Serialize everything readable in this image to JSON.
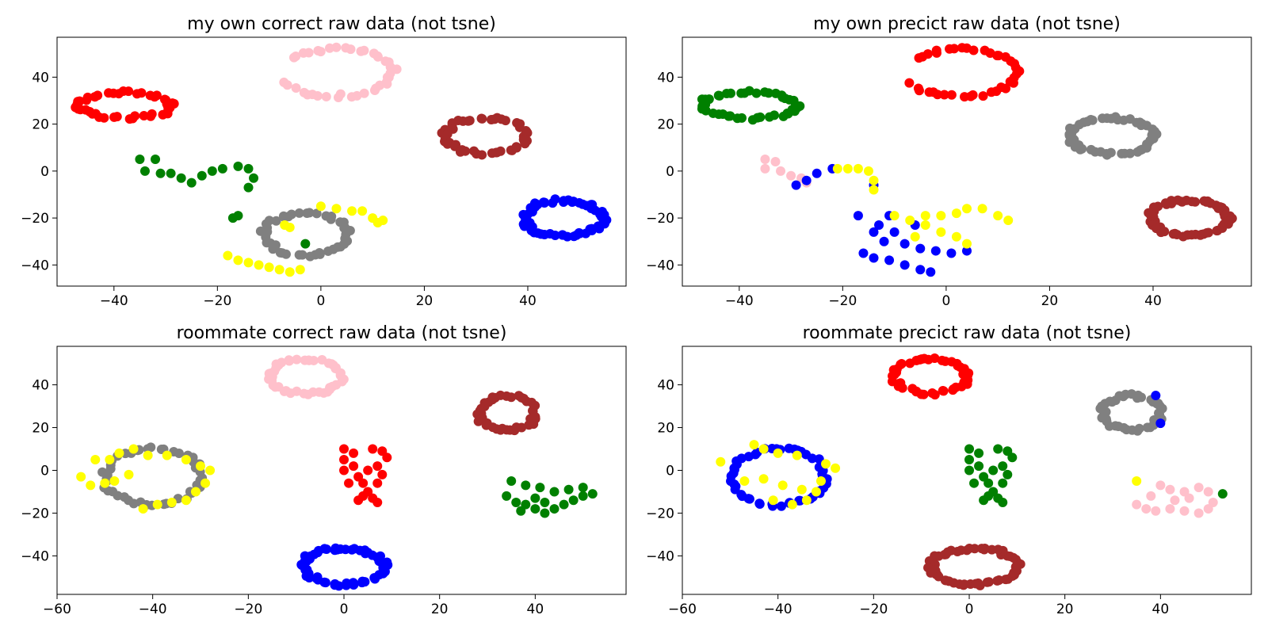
{
  "figure": {
    "background": "#ffffff"
  },
  "chart_data": [
    {
      "type": "scatter",
      "title": "my own correct raw data (not tsne)",
      "xlim": [
        -51,
        59
      ],
      "ylim": [
        -49,
        57
      ],
      "xticks": [
        -40,
        -20,
        0,
        20,
        40
      ],
      "yticks": [
        -40,
        -20,
        0,
        20,
        40
      ],
      "clusters": [
        {
          "color": "#ff0000",
          "shape": "ring",
          "cx": -38,
          "cy": 28,
          "rx": 9,
          "ry": 5.5,
          "n": 45
        },
        {
          "color": "#ffc0cb",
          "shape": "ring",
          "cx": 3,
          "cy": 42,
          "rx": 11,
          "ry": 10,
          "n": 40,
          "arc": [
            -150,
            150
          ]
        },
        {
          "color": "#a52a2a",
          "shape": "ring",
          "cx": 32,
          "cy": 15,
          "rx": 8,
          "ry": 7.5,
          "n": 50
        },
        {
          "color": "#008000",
          "shape": "points",
          "points": [
            [
              -35,
              5
            ],
            [
              -32,
              5
            ],
            [
              -34,
              0
            ],
            [
              -31,
              -1
            ],
            [
              -29,
              -1
            ],
            [
              -27,
              -3
            ],
            [
              -25,
              -5
            ],
            [
              -23,
              -2
            ],
            [
              -21,
              0
            ],
            [
              -19,
              1
            ],
            [
              -16,
              2
            ],
            [
              -14,
              1
            ],
            [
              -13,
              -3
            ],
            [
              -14,
              -7
            ],
            [
              -17,
              -20
            ],
            [
              -16,
              -19
            ],
            [
              -3,
              -31
            ]
          ]
        },
        {
          "color": "#0000ff",
          "shape": "ring",
          "cx": 47,
          "cy": -20,
          "rx": 7.5,
          "ry": 7.5,
          "n": 60
        },
        {
          "color": "#808080",
          "shape": "ring",
          "cx": -3,
          "cy": -27,
          "rx": 8,
          "ry": 9,
          "n": 45
        },
        {
          "color": "#ffff00",
          "shape": "points",
          "points": [
            [
              0,
              -15
            ],
            [
              3,
              -16
            ],
            [
              6,
              -17
            ],
            [
              8,
              -17
            ],
            [
              10,
              -20
            ],
            [
              11,
              -22
            ],
            [
              12,
              -21
            ],
            [
              -6,
              -24
            ],
            [
              -7,
              -23
            ],
            [
              -18,
              -36
            ],
            [
              -16,
              -38
            ],
            [
              -14,
              -39
            ],
            [
              -12,
              -40
            ],
            [
              -10,
              -41
            ],
            [
              -8,
              -42
            ],
            [
              -6,
              -43
            ],
            [
              -4,
              -42
            ]
          ]
        }
      ]
    },
    {
      "type": "scatter",
      "title": "my own precict raw data (not tsne)",
      "xlim": [
        -51,
        59
      ],
      "ylim": [
        -49,
        57
      ],
      "xticks": [
        -40,
        -20,
        0,
        20,
        40
      ],
      "yticks": [
        -40,
        -20,
        0,
        20,
        40
      ],
      "clusters": [
        {
          "color": "#ff0000",
          "shape": "ring",
          "cx": 3,
          "cy": 42,
          "rx": 11,
          "ry": 10,
          "n": 40,
          "arc": [
            -150,
            150
          ]
        },
        {
          "color": "#008000",
          "shape": "ring",
          "cx": -38,
          "cy": 28,
          "rx": 9,
          "ry": 5.5,
          "n": 45
        },
        {
          "color": "#808080",
          "shape": "ring",
          "cx": 32,
          "cy": 15,
          "rx": 8,
          "ry": 7.5,
          "n": 50
        },
        {
          "color": "#ffc0cb",
          "shape": "points",
          "points": [
            [
              -35,
              5
            ],
            [
              -33,
              4
            ],
            [
              -35,
              1
            ],
            [
              -32,
              0
            ],
            [
              -30,
              -2
            ],
            [
              -28,
              -3
            ],
            [
              -27,
              -5
            ]
          ]
        },
        {
          "color": "#0000ff",
          "shape": "points",
          "points": [
            [
              -29,
              -6
            ],
            [
              -27,
              -4
            ],
            [
              -25,
              -1
            ],
            [
              -22,
              1
            ],
            [
              -14,
              -6
            ],
            [
              -17,
              -19
            ],
            [
              -11,
              -19
            ],
            [
              -13,
              -23
            ],
            [
              -14,
              -26
            ],
            [
              -12,
              -30
            ],
            [
              -8,
              -31
            ],
            [
              -5,
              -33
            ],
            [
              -2,
              -34
            ],
            [
              1,
              -35
            ],
            [
              4,
              -34
            ],
            [
              -16,
              -35
            ],
            [
              -14,
              -37
            ],
            [
              -11,
              -38
            ],
            [
              -8,
              -40
            ],
            [
              -5,
              -42
            ],
            [
              -3,
              -43
            ],
            [
              -10,
              -26
            ],
            [
              -6,
              -23
            ]
          ]
        },
        {
          "color": "#ffff00",
          "shape": "points",
          "points": [
            [
              -21,
              1
            ],
            [
              -19,
              1
            ],
            [
              -17,
              1
            ],
            [
              -15,
              0
            ],
            [
              -14,
              -4
            ],
            [
              -14,
              -8
            ],
            [
              -10,
              -19
            ],
            [
              -7,
              -21
            ],
            [
              -4,
              -19
            ],
            [
              -1,
              -19
            ],
            [
              2,
              -18
            ],
            [
              4,
              -16
            ],
            [
              7,
              -16
            ],
            [
              10,
              -19
            ],
            [
              12,
              -21
            ],
            [
              -4,
              -23
            ],
            [
              -1,
              -26
            ],
            [
              2,
              -28
            ],
            [
              4,
              -31
            ],
            [
              -6,
              -28
            ]
          ]
        },
        {
          "color": "#a52a2a",
          "shape": "ring",
          "cx": 47,
          "cy": -20,
          "rx": 7.5,
          "ry": 7.5,
          "n": 60
        }
      ]
    },
    {
      "type": "scatter",
      "title": "roommate correct raw data (not tsne)",
      "xlim": [
        -60,
        59
      ],
      "ylim": [
        -58,
        58
      ],
      "xticks": [
        -60,
        -40,
        -20,
        0,
        20,
        40
      ],
      "yticks": [
        -40,
        -20,
        0,
        20,
        40
      ],
      "clusters": [
        {
          "color": "#ffc0cb",
          "shape": "ring",
          "cx": -8,
          "cy": 44,
          "rx": 7.5,
          "ry": 8,
          "n": 45
        },
        {
          "color": "#a52a2a",
          "shape": "ring",
          "cx": 34,
          "cy": 27,
          "rx": 6,
          "ry": 8,
          "n": 40
        },
        {
          "color": "#ff0000",
          "shape": "points",
          "points": [
            [
              0,
              10
            ],
            [
              2,
              8
            ],
            [
              0,
              5
            ],
            [
              2,
              2
            ],
            [
              0,
              0
            ],
            [
              3,
              -3
            ],
            [
              4,
              -6
            ],
            [
              5,
              -10
            ],
            [
              6,
              -13
            ],
            [
              7,
              -15
            ],
            [
              6,
              10
            ],
            [
              8,
              9
            ],
            [
              9,
              6
            ],
            [
              7,
              2
            ],
            [
              8,
              -2
            ],
            [
              7,
              -6
            ],
            [
              4,
              -12
            ],
            [
              3,
              -14
            ],
            [
              1,
              -6
            ],
            [
              5,
              0
            ]
          ]
        },
        {
          "color": "#808080",
          "shape": "ring",
          "cx": -40,
          "cy": -3,
          "rx": 10,
          "ry": 13,
          "n": 45
        },
        {
          "color": "#ffff00",
          "shape": "points",
          "points": [
            [
              -52,
              5
            ],
            [
              -55,
              -3
            ],
            [
              -53,
              -7
            ],
            [
              -50,
              -6
            ],
            [
              -49,
              5
            ],
            [
              -47,
              8
            ],
            [
              -44,
              10
            ],
            [
              -41,
              7
            ],
            [
              -37,
              7
            ],
            [
              -33,
              5
            ],
            [
              -30,
              2
            ],
            [
              -28,
              0
            ],
            [
              -29,
              -6
            ],
            [
              -31,
              -10
            ],
            [
              -33,
              -14
            ],
            [
              -36,
              -15
            ],
            [
              -39,
              -16
            ],
            [
              -42,
              -18
            ],
            [
              -48,
              -5
            ],
            [
              -45,
              -2
            ]
          ]
        },
        {
          "color": "#008000",
          "shape": "points",
          "points": [
            [
              35,
              -5
            ],
            [
              34,
              -12
            ],
            [
              36,
              -15
            ],
            [
              38,
              -16
            ],
            [
              40,
              -18
            ],
            [
              42,
              -20
            ],
            [
              44,
              -18
            ],
            [
              46,
              -16
            ],
            [
              48,
              -14
            ],
            [
              50,
              -12
            ],
            [
              52,
              -11
            ],
            [
              50,
              -8
            ],
            [
              47,
              -9
            ],
            [
              44,
              -10
            ],
            [
              41,
              -8
            ],
            [
              38,
              -7
            ],
            [
              40,
              -13
            ],
            [
              42,
              -15
            ],
            [
              37,
              -19
            ]
          ]
        },
        {
          "color": "#0000ff",
          "shape": "ring",
          "cx": 0,
          "cy": -45,
          "rx": 8.5,
          "ry": 8.5,
          "n": 60
        }
      ]
    },
    {
      "type": "scatter",
      "title": "roommate precict raw data (not tsne)",
      "xlim": [
        -60,
        59
      ],
      "ylim": [
        -58,
        58
      ],
      "xticks": [
        -60,
        -40,
        -20,
        0,
        20,
        40
      ],
      "yticks": [
        -40,
        -20,
        0,
        20,
        40
      ],
      "clusters": [
        {
          "color": "#ff0000",
          "shape": "ring",
          "cx": -8,
          "cy": 44,
          "rx": 7.5,
          "ry": 8,
          "n": 45
        },
        {
          "color": "#808080",
          "shape": "ring",
          "cx": 34,
          "cy": 27,
          "rx": 6,
          "ry": 8,
          "n": 40
        },
        {
          "color": "#0000ff",
          "shape": "points",
          "points": [
            [
              39,
              35
            ],
            [
              40,
              22
            ]
          ]
        },
        {
          "color": "#008000",
          "shape": "points",
          "points": [
            [
              0,
              10
            ],
            [
              2,
              8
            ],
            [
              0,
              5
            ],
            [
              2,
              2
            ],
            [
              0,
              0
            ],
            [
              3,
              -3
            ],
            [
              4,
              -6
            ],
            [
              5,
              -10
            ],
            [
              6,
              -13
            ],
            [
              7,
              -15
            ],
            [
              6,
              10
            ],
            [
              8,
              9
            ],
            [
              9,
              6
            ],
            [
              7,
              2
            ],
            [
              8,
              -2
            ],
            [
              7,
              -6
            ],
            [
              4,
              -12
            ],
            [
              3,
              -14
            ],
            [
              1,
              -6
            ],
            [
              5,
              0
            ],
            [
              53,
              -11
            ]
          ]
        },
        {
          "color": "#0000ff",
          "shape": "ring",
          "cx": -40,
          "cy": -3,
          "rx": 10,
          "ry": 13,
          "n": 50
        },
        {
          "color": "#ffff00",
          "shape": "points",
          "points": [
            [
              -52,
              4
            ],
            [
              -45,
              12
            ],
            [
              -43,
              10
            ],
            [
              -40,
              8
            ],
            [
              -36,
              7
            ],
            [
              -30,
              3
            ],
            [
              -28,
              1
            ],
            [
              -32,
              -10
            ],
            [
              -34,
              -14
            ],
            [
              -37,
              -16
            ],
            [
              -41,
              -14
            ],
            [
              -47,
              -5
            ],
            [
              -43,
              -4
            ],
            [
              -39,
              -7
            ],
            [
              -35,
              -9
            ],
            [
              -31,
              -5
            ]
          ]
        },
        {
          "color": "#ffc0cb",
          "shape": "points",
          "points": [
            [
              35,
              -16
            ],
            [
              37,
              -18
            ],
            [
              39,
              -19
            ],
            [
              42,
              -18
            ],
            [
              45,
              -19
            ],
            [
              48,
              -20
            ],
            [
              50,
              -18
            ],
            [
              51,
              -15
            ],
            [
              50,
              -10
            ],
            [
              48,
              -8
            ],
            [
              45,
              -10
            ],
            [
              42,
              -9
            ],
            [
              40,
              -7
            ],
            [
              38,
              -12
            ],
            [
              43,
              -14
            ],
            [
              46,
              -13
            ]
          ]
        },
        {
          "color": "#ffff00",
          "shape": "points",
          "points": [
            [
              35,
              -5
            ]
          ]
        },
        {
          "color": "#a52a2a",
          "shape": "ring",
          "cx": 1,
          "cy": -45,
          "rx": 9,
          "ry": 8.5,
          "n": 60
        }
      ]
    }
  ]
}
